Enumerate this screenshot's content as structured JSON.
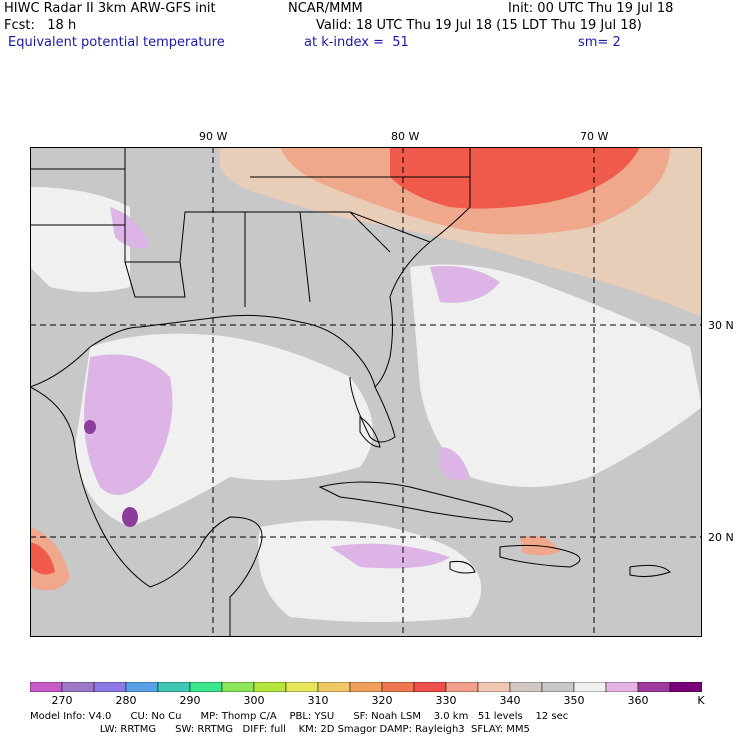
{
  "header": {
    "title": "HIWC Radar II 3km ARW-GFS init",
    "org": "NCAR/MMM",
    "init": "Init: 00 UTC Thu 19 Jul 18",
    "forecast": "Fcst:   18 h",
    "valid": "Valid: 18 UTC Thu 19 Jul 18 (15 LDT Thu 19 Jul 18)",
    "field": "Equivalent potential temperature",
    "level": "at k-index =  51",
    "smoothing": "sm= 2"
  },
  "map": {
    "lon_labels": [
      "90 W",
      "80 W",
      "70 W"
    ],
    "lat_labels": [
      "30 N",
      "20 N"
    ],
    "colors": {
      "ocean_gray": "#c8c8c8",
      "light": "#f0f0f0",
      "lavender": "#dcb4e6",
      "purple": "#8c3c9c",
      "tan": "#e8cdb8",
      "salmon": "#f0a88c",
      "red": "#f05a4b",
      "coast": "#000000",
      "grid": "#000000"
    }
  },
  "colorbar": {
    "colors": [
      "#c85ac8",
      "#a078c8",
      "#8c78e6",
      "#5aa0e6",
      "#3cc8b4",
      "#3ce68c",
      "#8ce65a",
      "#b4e63c",
      "#e6e65a",
      "#f0c864",
      "#f0a05a",
      "#f07850",
      "#f0504b",
      "#f0a08c",
      "#f0c8b4",
      "#d2c8c3",
      "#c8c8c8",
      "#f0f0f0",
      "#e6b4e6",
      "#a03ca0",
      "#780078"
    ],
    "labels": [
      "270",
      "280",
      "290",
      "300",
      "310",
      "320",
      "330",
      "340",
      "350",
      "360"
    ],
    "unit": "K"
  },
  "footer": {
    "line1": "Model Info: V4.0      CU: No Cu      MP: Thomp C/A    PBL: YSU      SF: Noah LSM    3.0 km   51 levels    12 sec",
    "line2": "                      LW: RRTMG      SW: RRTMG   DIFF: full    KM: 2D Smagor DAMP: Rayleigh3  SFLAY: MM5"
  }
}
